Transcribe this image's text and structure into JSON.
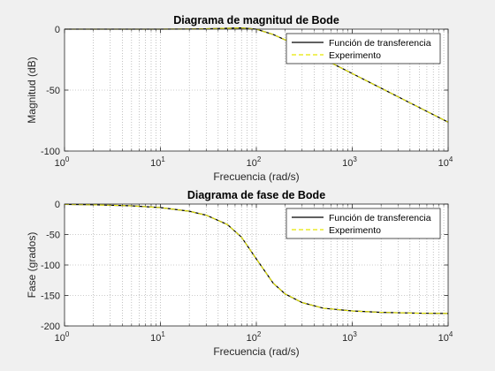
{
  "chart_data": [
    {
      "type": "line",
      "title": "Diagrama de magnitud de Bode",
      "xlabel": "Frecuencia (rad/s)",
      "ylabel": "Magnitud (dB)",
      "xscale": "log",
      "xlim": [
        1,
        10000
      ],
      "ylim": [
        -100,
        0
      ],
      "xticks": [
        {
          "base": "10",
          "exp": "0",
          "value": 1
        },
        {
          "base": "10",
          "exp": "1",
          "value": 10
        },
        {
          "base": "10",
          "exp": "2",
          "value": 100
        },
        {
          "base": "10",
          "exp": "3",
          "value": 1000
        },
        {
          "base": "10",
          "exp": "4",
          "value": 10000
        }
      ],
      "yticks": [
        {
          "label": "0",
          "value": 0
        },
        {
          "label": "-50",
          "value": -50
        },
        {
          "label": "-100",
          "value": -100
        }
      ],
      "grid": true,
      "legend_position": "top-right",
      "series": [
        {
          "name": "Función de transferencia",
          "color": "#000000",
          "style": "solid",
          "x": [
            1,
            2,
            5,
            10,
            20,
            30,
            50,
            70,
            100,
            150,
            200,
            300,
            500,
            1000,
            2000,
            5000,
            10000
          ],
          "y": [
            0,
            0,
            0,
            0,
            0.1,
            0.3,
            0.7,
            1.0,
            0,
            -4.4,
            -8.8,
            -15.7,
            -24.4,
            -36.4,
            -48.4,
            -64.3,
            -76.3
          ]
        },
        {
          "name": "Experimento",
          "color": "#e6e600",
          "style": "dashed",
          "x": [
            1,
            2,
            5,
            10,
            20,
            30,
            50,
            70,
            100,
            150,
            200,
            300,
            500,
            1000,
            2000,
            5000,
            10000
          ],
          "y": [
            0,
            0,
            0,
            0,
            0.1,
            0.3,
            0.7,
            1.0,
            0,
            -4.4,
            -8.8,
            -15.7,
            -24.4,
            -36.4,
            -48.4,
            -64.3,
            -76.3
          ]
        }
      ]
    },
    {
      "type": "line",
      "title": "Diagrama de fase de Bode",
      "xlabel": "Frecuencia (rad/s)",
      "ylabel": "Fase (grados)",
      "xscale": "log",
      "xlim": [
        1,
        10000
      ],
      "ylim": [
        -200,
        0
      ],
      "xticks": [
        {
          "base": "10",
          "exp": "0",
          "value": 1
        },
        {
          "base": "10",
          "exp": "1",
          "value": 10
        },
        {
          "base": "10",
          "exp": "2",
          "value": 100
        },
        {
          "base": "10",
          "exp": "3",
          "value": 1000
        },
        {
          "base": "10",
          "exp": "4",
          "value": 10000
        }
      ],
      "yticks": [
        {
          "label": "0",
          "value": 0
        },
        {
          "label": "-50",
          "value": -50
        },
        {
          "label": "-100",
          "value": -100
        },
        {
          "label": "-150",
          "value": -150
        },
        {
          "label": "-200",
          "value": -200
        }
      ],
      "grid": true,
      "legend_position": "top-right",
      "series": [
        {
          "name": "Función de transferencia",
          "color": "#000000",
          "style": "solid",
          "x": [
            1,
            2,
            5,
            10,
            20,
            30,
            50,
            70,
            100,
            150,
            200,
            300,
            500,
            1000,
            2000,
            5000,
            10000
          ],
          "y": [
            -0.6,
            -1.2,
            -2.9,
            -5.8,
            -11.8,
            -18.3,
            -33.7,
            -54.3,
            -90,
            -129.8,
            -147.6,
            -161.6,
            -170.9,
            -175.4,
            -177.7,
            -179.1,
            -179.5
          ]
        },
        {
          "name": "Experimento",
          "color": "#e6e600",
          "style": "dashed",
          "x": [
            1,
            2,
            5,
            10,
            20,
            30,
            50,
            70,
            100,
            150,
            200,
            300,
            500,
            1000,
            2000,
            5000,
            10000
          ],
          "y": [
            -0.6,
            -1.2,
            -2.9,
            -5.8,
            -11.8,
            -18.3,
            -33.7,
            -54.3,
            -90,
            -129.8,
            -147.6,
            -161.6,
            -170.9,
            -175.4,
            -177.7,
            -179.1,
            -179.5
          ]
        }
      ]
    }
  ]
}
